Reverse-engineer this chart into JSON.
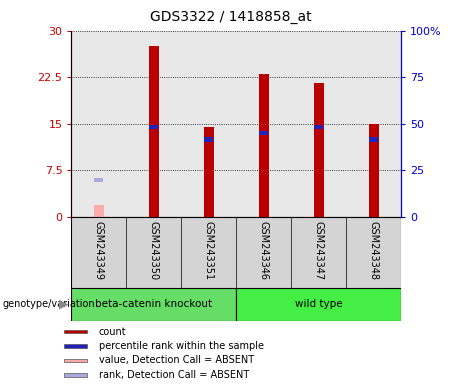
{
  "title": "GDS3322 / 1418858_at",
  "samples": [
    "GSM243349",
    "GSM243350",
    "GSM243351",
    "GSM243346",
    "GSM243347",
    "GSM243348"
  ],
  "red_counts": [
    null,
    27.5,
    14.5,
    23.0,
    21.5,
    15.0
  ],
  "blue_percentiles": [
    null,
    14.5,
    12.5,
    13.5,
    14.5,
    12.5
  ],
  "absent_value": 2.0,
  "absent_rank": 6.0,
  "absent_idx": 0,
  "ylim": [
    0,
    30
  ],
  "yticks_left": [
    0,
    7.5,
    15,
    22.5,
    30
  ],
  "ytick_labels_left": [
    "0",
    "7.5",
    "15",
    "22.5",
    "30"
  ],
  "ytick_labels_right": [
    "0",
    "25",
    "50",
    "75",
    "100%"
  ],
  "groups": [
    {
      "label": "beta-catenin knockout",
      "indices": [
        0,
        1,
        2
      ],
      "color": "#66DD66"
    },
    {
      "label": "wild type",
      "indices": [
        3,
        4,
        5
      ],
      "color": "#44EE44"
    }
  ],
  "red_color": "#BB0000",
  "blue_color": "#2222BB",
  "pink_color": "#FFAAAA",
  "light_blue_color": "#AAAADD",
  "plot_bg": "#E8E8E8",
  "sample_label_bg": "#D4D4D4",
  "left_axis_color": "#CC0000",
  "right_axis_color": "#0000CC",
  "legend_labels": [
    "count",
    "percentile rank within the sample",
    "value, Detection Call = ABSENT",
    "rank, Detection Call = ABSENT"
  ]
}
